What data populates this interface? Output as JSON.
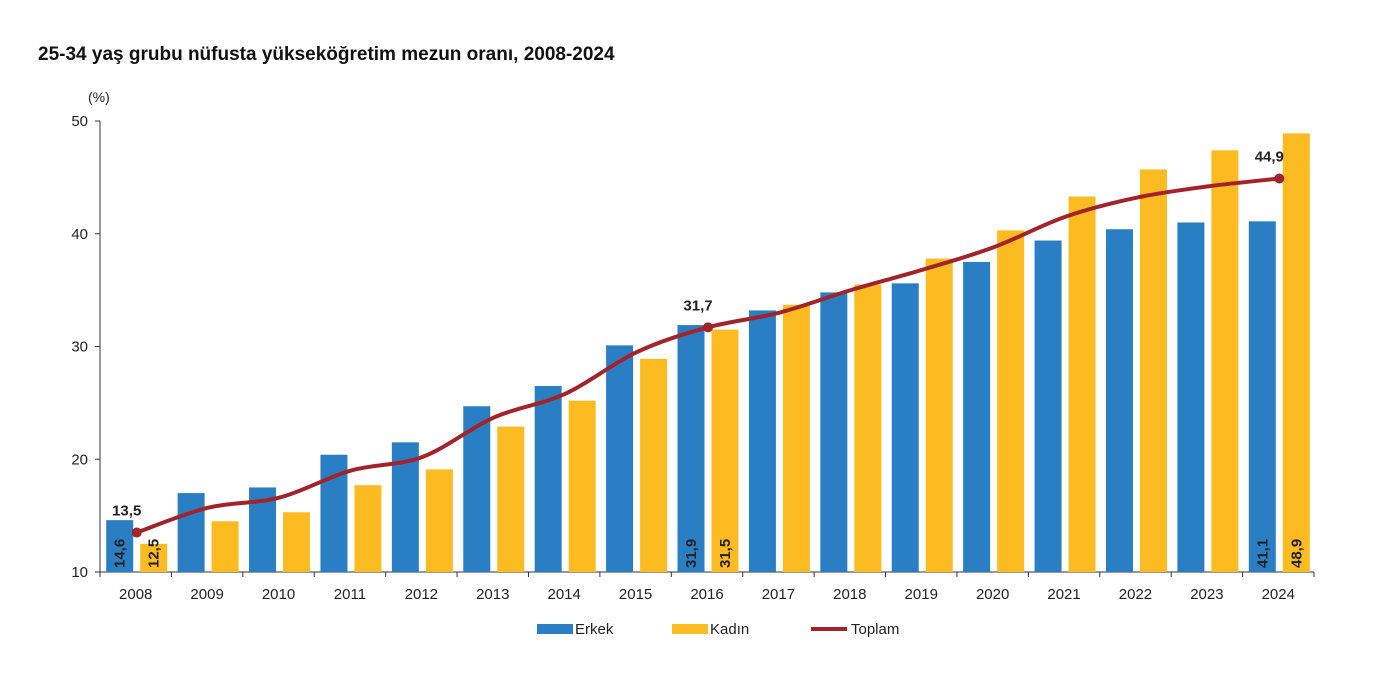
{
  "chart_data": {
    "type": "bar",
    "title": "25-34 yaş grubu nüfusta yükseköğretim mezun oranı, 2008-2024",
    "ylabel": "(%)",
    "xlabel": "",
    "ylim": [
      10,
      50
    ],
    "yticks": [
      "10",
      "20",
      "30",
      "40",
      "50"
    ],
    "grid": false,
    "legend_position": "bottom",
    "categories": [
      "2008",
      "2009",
      "2010",
      "2011",
      "2012",
      "2013",
      "2014",
      "2015",
      "2016",
      "2017",
      "2018",
      "2019",
      "2020",
      "2021",
      "2022",
      "2023",
      "2024"
    ],
    "series": [
      {
        "name": "Erkek",
        "type": "bar",
        "color": "#2a7fc4",
        "values": [
          14.6,
          17.0,
          17.5,
          20.4,
          21.5,
          24.7,
          26.5,
          30.1,
          31.9,
          33.2,
          34.8,
          35.6,
          37.5,
          39.4,
          40.4,
          41.0,
          41.1
        ],
        "labels": {
          "0": "14,6",
          "8": "31,9",
          "16": "41,1"
        }
      },
      {
        "name": "Kadın",
        "type": "bar",
        "color": "#fbbb21",
        "values": [
          12.5,
          14.5,
          15.3,
          17.7,
          19.1,
          22.9,
          25.2,
          28.9,
          31.5,
          33.7,
          35.5,
          37.8,
          40.3,
          43.3,
          45.7,
          47.4,
          48.9
        ],
        "labels": {
          "0": "12,5",
          "8": "31,5",
          "16": "48,9"
        }
      },
      {
        "name": "Toplam",
        "type": "line",
        "color": "#a3232b",
        "values": [
          13.5,
          15.7,
          16.6,
          19.0,
          20.2,
          23.7,
          25.8,
          29.5,
          31.7,
          33.0,
          35.0,
          36.8,
          38.8,
          41.5,
          43.2,
          44.2,
          44.9
        ],
        "labels": {
          "0": "13,5",
          "8": "31,7",
          "16": "44,9"
        }
      }
    ]
  }
}
